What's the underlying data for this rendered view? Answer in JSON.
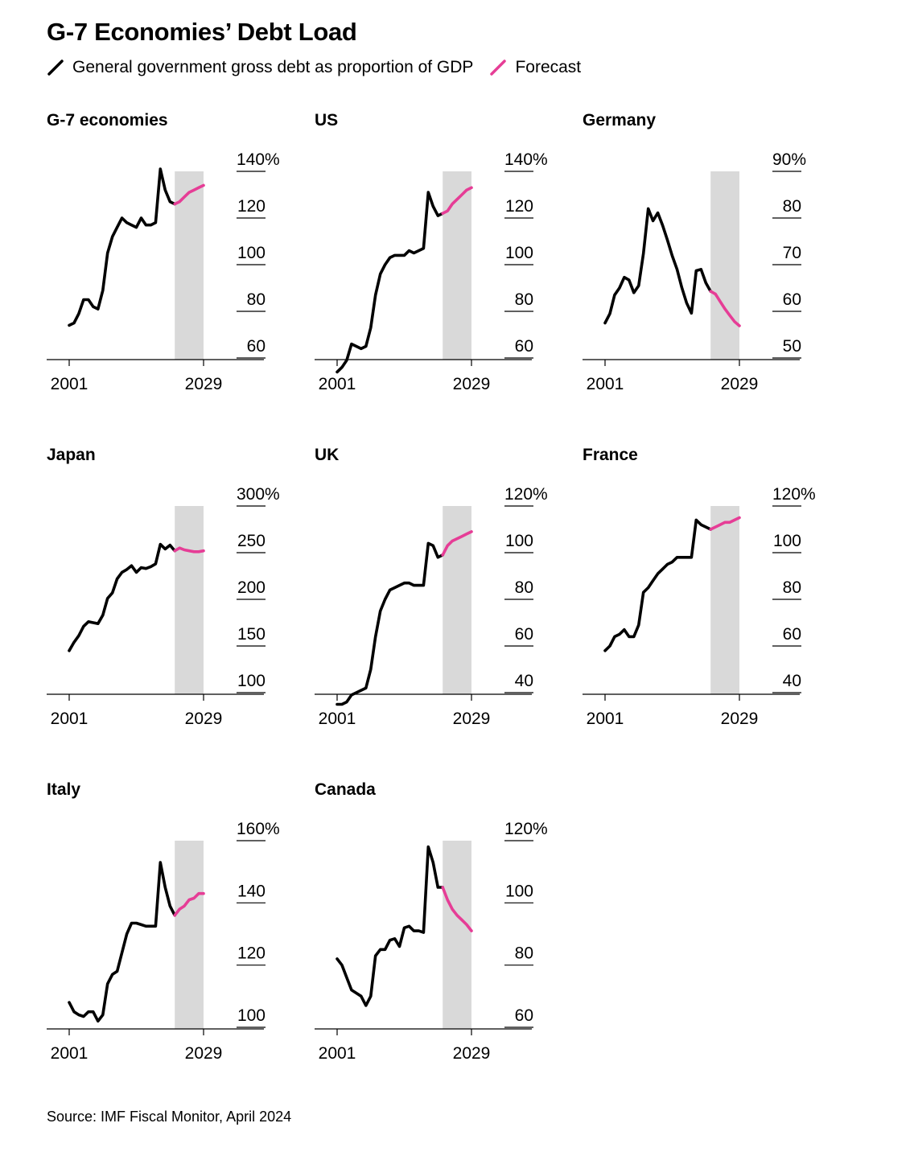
{
  "title": "G-7 Economies’ Debt Load",
  "legend": {
    "actual_label": "General government gross debt as proportion of GDP",
    "forecast_label": "Forecast",
    "actual_color": "#000000",
    "forecast_color": "#e63d96",
    "shade_color": "#d9d9d9"
  },
  "source": "Source: IMF Fiscal Monitor, April 2024",
  "chart_data": [
    {
      "type": "line",
      "title": "G-7 economies",
      "x": {
        "start": 2001,
        "end": 2029,
        "tick_labels": [
          "2001",
          "2029"
        ]
      },
      "forecast_start": 2023,
      "yticks": [
        60,
        80,
        100,
        120,
        140
      ],
      "ytick_labels": [
        "60",
        "80",
        "100",
        "120",
        "140%"
      ],
      "series": [
        {
          "values": [
            74,
            75,
            79,
            85,
            85,
            82,
            81,
            89,
            105,
            112,
            116,
            120,
            118,
            117,
            116,
            120,
            117,
            117,
            118,
            141,
            132,
            127,
            126,
            127,
            129,
            131,
            132,
            133,
            134
          ]
        }
      ]
    },
    {
      "type": "line",
      "title": "US",
      "x": {
        "start": 2001,
        "end": 2029,
        "tick_labels": [
          "2001",
          "2029"
        ]
      },
      "forecast_start": 2023,
      "yticks": [
        60,
        80,
        100,
        120,
        140
      ],
      "ytick_labels": [
        "60",
        "80",
        "100",
        "120",
        "140%"
      ],
      "series": [
        {
          "values": [
            54,
            56,
            59,
            66,
            65,
            64,
            65,
            73,
            87,
            96,
            100,
            103,
            104,
            104,
            104,
            106,
            105,
            106,
            107,
            131,
            125,
            121,
            122,
            123,
            126,
            128,
            130,
            132,
            133
          ]
        }
      ]
    },
    {
      "type": "line",
      "title": "Germany",
      "x": {
        "start": 2001,
        "end": 2029,
        "tick_labels": [
          "2001",
          "2029"
        ]
      },
      "forecast_start": 2023,
      "yticks": [
        50,
        60,
        70,
        80,
        90
      ],
      "ytick_labels": [
        "50",
        "60",
        "70",
        "80",
        "90%"
      ],
      "series": [
        {
          "values": [
            57.5,
            59.5,
            63.5,
            65.0,
            67.3,
            66.7,
            64.0,
            65.5,
            72.4,
            82.0,
            79.4,
            81.1,
            78.4,
            75.3,
            71.9,
            69.0,
            65.1,
            61.8,
            59.6,
            68.7,
            69.0,
            66.1,
            64.3,
            63.7,
            62.1,
            60.5,
            59.1,
            57.8,
            56.9
          ]
        }
      ]
    },
    {
      "type": "line",
      "title": "Japan",
      "x": {
        "start": 2001,
        "end": 2029,
        "tick_labels": [
          "2001",
          "2029"
        ]
      },
      "forecast_start": 2023,
      "yticks": [
        100,
        150,
        200,
        250,
        300
      ],
      "ytick_labels": [
        "100",
        "150",
        "200",
        "250",
        "300%"
      ],
      "series": [
        {
          "values": [
            145,
            154,
            161,
            171,
            176,
            175,
            174,
            183,
            201,
            207,
            222,
            229,
            232,
            236,
            229,
            234,
            233,
            235,
            238,
            259,
            254,
            258,
            252,
            255,
            253,
            252,
            251,
            251,
            252
          ]
        }
      ]
    },
    {
      "type": "line",
      "title": "UK",
      "x": {
        "start": 2001,
        "end": 2029,
        "tick_labels": [
          "2001",
          "2029"
        ]
      },
      "forecast_start": 2023,
      "yticks": [
        40,
        60,
        80,
        100,
        120
      ],
      "ytick_labels": [
        "40",
        "60",
        "80",
        "100",
        "120%"
      ],
      "series": [
        {
          "values": [
            35,
            35,
            36,
            39,
            40,
            41,
            42,
            50,
            64,
            75,
            80,
            84,
            85,
            86,
            87,
            87,
            86,
            86,
            86,
            104,
            103,
            98,
            99,
            103,
            105,
            106,
            107,
            108,
            109
          ]
        }
      ]
    },
    {
      "type": "line",
      "title": "France",
      "x": {
        "start": 2001,
        "end": 2029,
        "tick_labels": [
          "2001",
          "2029"
        ]
      },
      "forecast_start": 2023,
      "yticks": [
        40,
        60,
        80,
        100,
        120
      ],
      "ytick_labels": [
        "40",
        "60",
        "80",
        "100",
        "120%"
      ],
      "series": [
        {
          "values": [
            58,
            60,
            64,
            65,
            67,
            64,
            64,
            69,
            83,
            85,
            88,
            91,
            93,
            95,
            96,
            98,
            98,
            98,
            98,
            114,
            112,
            111,
            110,
            111,
            112,
            113,
            113,
            114,
            115
          ]
        }
      ]
    },
    {
      "type": "line",
      "title": "Italy",
      "x": {
        "start": 2001,
        "end": 2029,
        "tick_labels": [
          "2001",
          "2029"
        ]
      },
      "forecast_start": 2023,
      "yticks": [
        100,
        120,
        140,
        160
      ],
      "ytick_labels": [
        "100",
        "120",
        "140",
        "160%"
      ],
      "series": [
        {
          "values": [
            108,
            105,
            104,
            103.5,
            105,
            105,
            102,
            104,
            114,
            117,
            118,
            124,
            130,
            133.5,
            133.5,
            133,
            132.5,
            132.5,
            132.5,
            153,
            145,
            139,
            136,
            138,
            139,
            141,
            141.5,
            143,
            143
          ]
        }
      ]
    },
    {
      "type": "line",
      "title": "Canada",
      "x": {
        "start": 2001,
        "end": 2029,
        "tick_labels": [
          "2001",
          "2029"
        ]
      },
      "forecast_start": 2023,
      "yticks": [
        60,
        80,
        100,
        120
      ],
      "ytick_labels": [
        "60",
        "80",
        "100",
        "120%"
      ],
      "series": [
        {
          "values": [
            82,
            80,
            76,
            72,
            71,
            70,
            67,
            70,
            83,
            85,
            85,
            88,
            88.5,
            86,
            92,
            92.5,
            91,
            91,
            90.5,
            118,
            113,
            105,
            105,
            101,
            98,
            96,
            94.5,
            93,
            91
          ]
        }
      ]
    }
  ]
}
